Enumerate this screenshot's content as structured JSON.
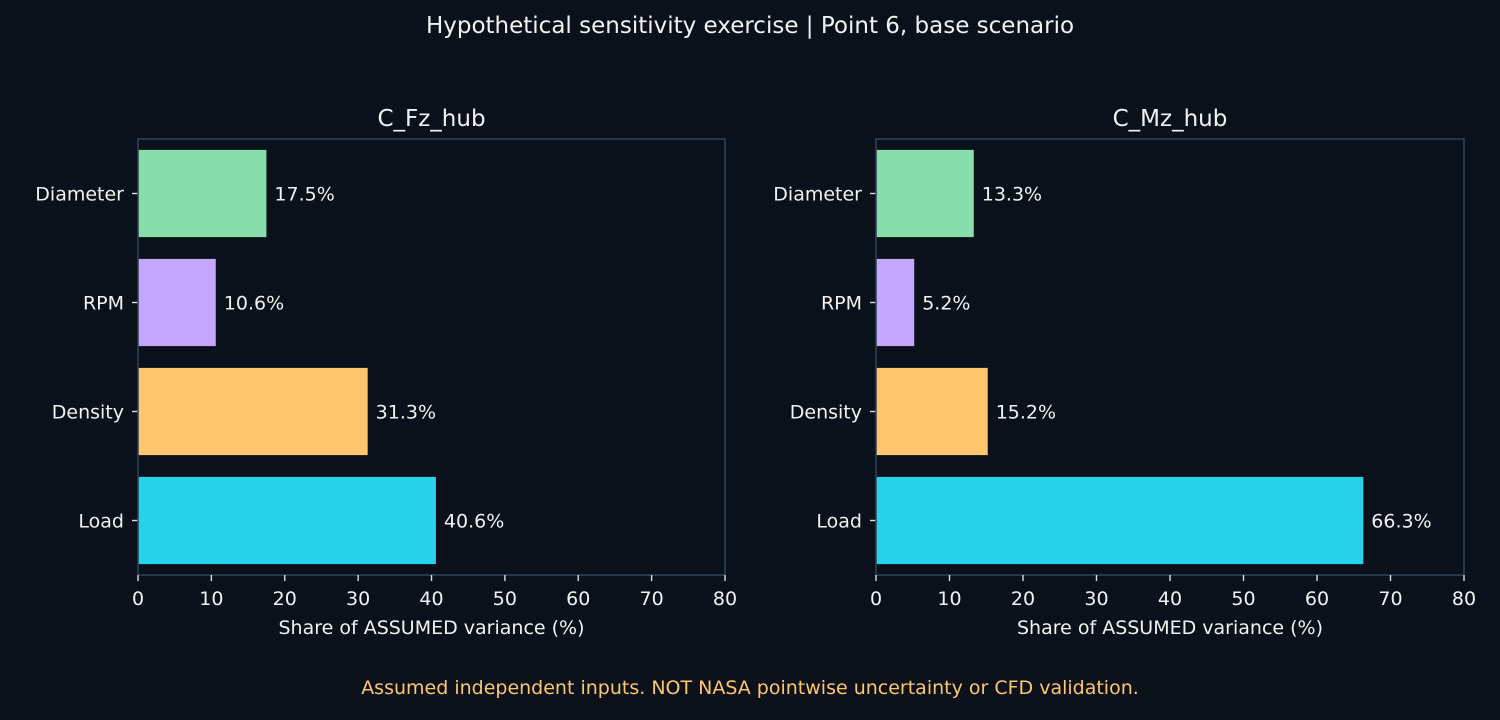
{
  "suptitle": "Hypothetical sensitivity exercise | Point 6, base scenario",
  "footnote": "Assumed independent inputs. NOT NASA pointwise uncertainty or CFD validation.",
  "chart_data": [
    {
      "type": "bar",
      "orientation": "horizontal",
      "title": "C_Fz_hub",
      "xlabel": "Share of ASSUMED variance (%)",
      "ylabel": "",
      "categories": [
        "Diameter",
        "RPM",
        "Density",
        "Load"
      ],
      "values": [
        17.5,
        10.6,
        31.3,
        40.6
      ],
      "value_labels": [
        "17.5%",
        "10.6%",
        "31.3%",
        "40.6%"
      ],
      "colors": [
        "#86dfaa",
        "#c4a6ff",
        "#ffc66d",
        "#27d3eb"
      ],
      "xlim": [
        0,
        80
      ],
      "xticks": [
        0,
        10,
        20,
        30,
        40,
        50,
        60,
        70,
        80
      ],
      "grid": false
    },
    {
      "type": "bar",
      "orientation": "horizontal",
      "title": "C_Mz_hub",
      "xlabel": "Share of ASSUMED variance (%)",
      "ylabel": "",
      "categories": [
        "Diameter",
        "RPM",
        "Density",
        "Load"
      ],
      "values": [
        13.3,
        5.2,
        15.2,
        66.3
      ],
      "value_labels": [
        "13.3%",
        "5.2%",
        "15.2%",
        "66.3%"
      ],
      "colors": [
        "#86dfaa",
        "#c4a6ff",
        "#ffc66d",
        "#27d3eb"
      ],
      "xlim": [
        0,
        80
      ],
      "xticks": [
        0,
        10,
        20,
        30,
        40,
        50,
        60,
        70,
        80
      ],
      "grid": false
    }
  ]
}
